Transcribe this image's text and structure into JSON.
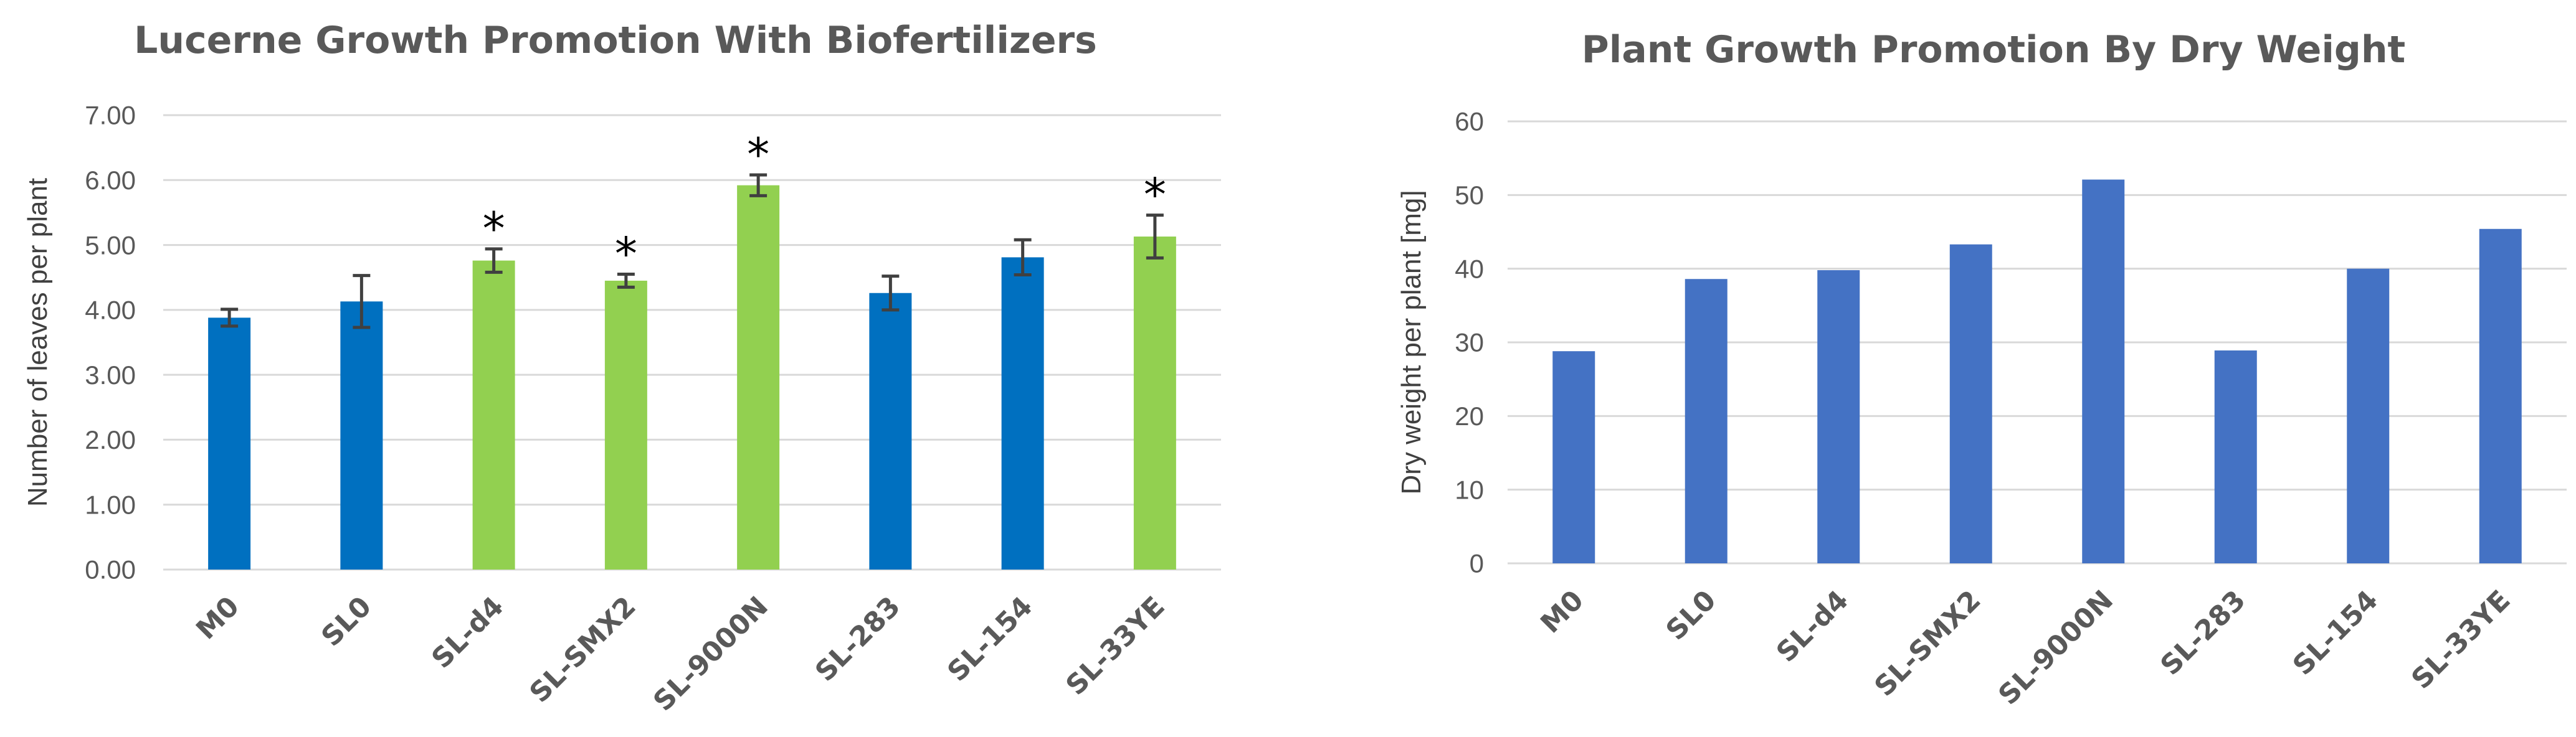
{
  "chart_data": [
    {
      "type": "bar",
      "title": "Lucerne Growth Promotion With Biofertilizers",
      "xlabel": "",
      "ylabel": "Number of leaves per plant",
      "ylim": [
        0,
        7
      ],
      "yticks": [
        "0.00",
        "1.00",
        "2.00",
        "3.00",
        "4.00",
        "5.00",
        "6.00",
        "7.00"
      ],
      "categories": [
        "M0",
        "SL0",
        "SL-d4",
        "SL-SMX2",
        "SL-9000N",
        "SL-283",
        "SL-154",
        "SL-33YE"
      ],
      "values": [
        3.88,
        4.13,
        4.76,
        4.45,
        5.92,
        4.26,
        4.81,
        5.13
      ],
      "errors": [
        0.13,
        0.4,
        0.18,
        0.1,
        0.16,
        0.26,
        0.27,
        0.33
      ],
      "significance": [
        "",
        "",
        "*",
        "*",
        "*",
        "",
        "",
        "*"
      ],
      "colors": [
        "#0070c0",
        "#0070c0",
        "#92d050",
        "#92d050",
        "#92d050",
        "#0070c0",
        "#0070c0",
        "#92d050"
      ],
      "grid": true
    },
    {
      "type": "bar",
      "title": "Plant Growth Promotion By Dry Weight",
      "xlabel": "",
      "ylabel": "Dry weight per plant [mg]",
      "ylim": [
        0,
        60
      ],
      "yticks": [
        "0",
        "10",
        "20",
        "30",
        "40",
        "50",
        "60"
      ],
      "categories": [
        "M0",
        "SL0",
        "SL-d4",
        "SL-SMX2",
        "SL-9000N",
        "SL-283",
        "SL-154",
        "SL-33YE"
      ],
      "values": [
        28.8,
        38.6,
        39.8,
        43.3,
        52.1,
        28.9,
        40.0,
        45.4
      ],
      "color": "#4472c4",
      "grid": true
    }
  ]
}
